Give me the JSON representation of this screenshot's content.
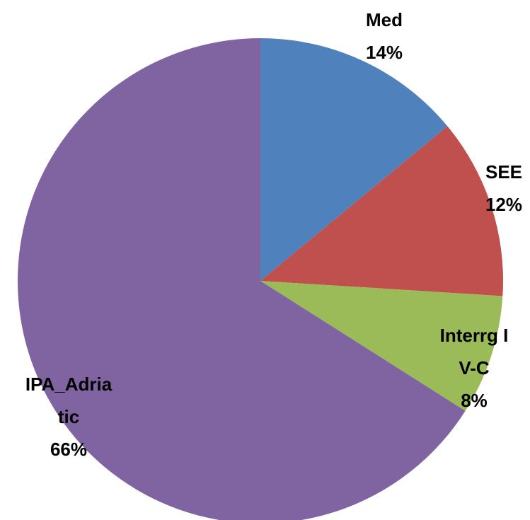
{
  "chart_data": {
    "type": "pie",
    "categories": [
      "Med",
      "SEE",
      "Interrg IV-C",
      "IPA_Adriatic"
    ],
    "values": [
      14,
      12,
      8,
      66
    ],
    "value_labels": [
      "14%",
      "12%",
      "8%",
      "66%"
    ],
    "colors": [
      "#4f81bd",
      "#c0504d",
      "#9bbb59",
      "#8064a2"
    ]
  }
}
